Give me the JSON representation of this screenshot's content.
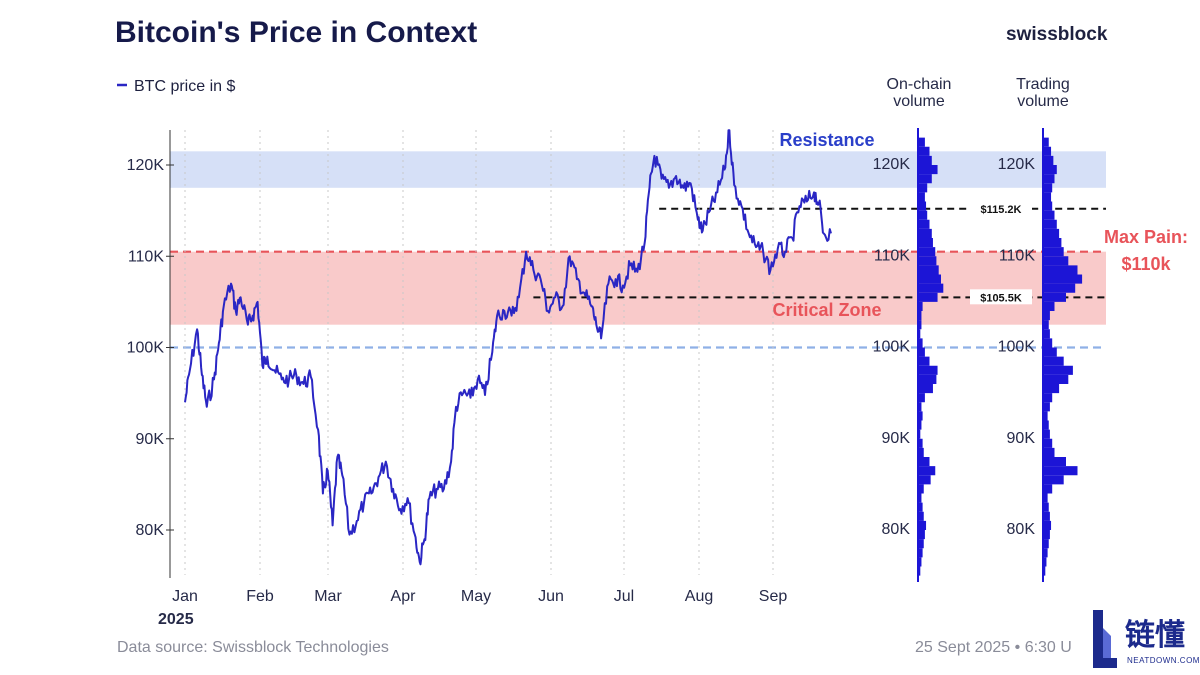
{
  "header": {
    "title": "Bitcoin's Price in Context",
    "brand": "swissblock"
  },
  "legend": {
    "series_label": "BTC price in $",
    "color": "#2a26c4"
  },
  "footer": {
    "source": "Data source: Swissblock Technologies",
    "timestamp": "25 Sept 2025 • 6:30 U"
  },
  "watermark": {
    "text_cn": "链懂",
    "text_en": "NEATDOWN.COM"
  },
  "colors": {
    "line": "#2a26c4",
    "resistance_band": "#d6e0f7",
    "critical_band": "#f9caca",
    "max_pain_line": "#e8545a",
    "support_line": "#8fb0e6",
    "volume_bars": "#1c15d6"
  },
  "chart_data": {
    "type": "line",
    "title": "Bitcoin's Price in Context",
    "series_name": "BTC price in $",
    "ylim": [
      75000,
      124000
    ],
    "y_ticks": [
      {
        "value": 80000,
        "label": "80K"
      },
      {
        "value": 90000,
        "label": "90K"
      },
      {
        "value": 100000,
        "label": "100K"
      },
      {
        "value": 110000,
        "label": "110K"
      },
      {
        "value": 120000,
        "label": "120K"
      }
    ],
    "x_ticks": [
      "Jan",
      "Feb",
      "Mar",
      "Apr",
      "May",
      "Jun",
      "Jul",
      "Aug",
      "Sep"
    ],
    "x_year_label": "2025",
    "x_start": "2025-01-01",
    "x_end": "2025-09-26",
    "series": [
      {
        "x": [
          "2025-01-01",
          "2025-01-03",
          "2025-01-06",
          "2025-01-08",
          "2025-01-10",
          "2025-01-13",
          "2025-01-15",
          "2025-01-17",
          "2025-01-20",
          "2025-01-22",
          "2025-01-24",
          "2025-01-27",
          "2025-01-29",
          "2025-01-31",
          "2025-02-02",
          "2025-02-04",
          "2025-02-07",
          "2025-02-10",
          "2025-02-13",
          "2025-02-16",
          "2025-02-19",
          "2025-02-22",
          "2025-02-25",
          "2025-02-27",
          "2025-03-01",
          "2025-03-03",
          "2025-03-05",
          "2025-03-07",
          "2025-03-10",
          "2025-03-13",
          "2025-03-16",
          "2025-03-19",
          "2025-03-22",
          "2025-03-25",
          "2025-03-28",
          "2025-03-31",
          "2025-04-03",
          "2025-04-06",
          "2025-04-08",
          "2025-04-10",
          "2025-04-12",
          "2025-04-15",
          "2025-04-18",
          "2025-04-21",
          "2025-04-23",
          "2025-04-26",
          "2025-04-29",
          "2025-05-02",
          "2025-05-05",
          "2025-05-08",
          "2025-05-10",
          "2025-05-13",
          "2025-05-16",
          "2025-05-19",
          "2025-05-22",
          "2025-05-25",
          "2025-05-28",
          "2025-05-31",
          "2025-06-03",
          "2025-06-06",
          "2025-06-09",
          "2025-06-12",
          "2025-06-15",
          "2025-06-18",
          "2025-06-20",
          "2025-06-22",
          "2025-06-25",
          "2025-06-28",
          "2025-07-01",
          "2025-07-04",
          "2025-07-07",
          "2025-07-10",
          "2025-07-12",
          "2025-07-14",
          "2025-07-17",
          "2025-07-20",
          "2025-07-23",
          "2025-07-26",
          "2025-07-29",
          "2025-08-01",
          "2025-08-03",
          "2025-08-06",
          "2025-08-09",
          "2025-08-12",
          "2025-08-14",
          "2025-08-16",
          "2025-08-19",
          "2025-08-22",
          "2025-08-25",
          "2025-08-28",
          "2025-08-31",
          "2025-09-03",
          "2025-09-06",
          "2025-09-09",
          "2025-09-12",
          "2025-09-15",
          "2025-09-18",
          "2025-09-20",
          "2025-09-22",
          "2025-09-25"
        ],
        "y": [
          94000,
          97500,
          102000,
          97000,
          93500,
          96500,
          100500,
          104500,
          107000,
          104000,
          105500,
          102500,
          103500,
          105000,
          98000,
          99000,
          97500,
          96500,
          96500,
          97000,
          96000,
          96800,
          91000,
          84000,
          86500,
          80500,
          88000,
          86000,
          79500,
          81000,
          83000,
          84000,
          85800,
          87500,
          84500,
          82300,
          83500,
          79500,
          76500,
          79000,
          83500,
          84500,
          84500,
          87500,
          93500,
          95000,
          94500,
          96500,
          94800,
          99500,
          103500,
          104000,
          103500,
          105500,
          110500,
          108500,
          107500,
          104000,
          105500,
          104500,
          110000,
          107500,
          106000,
          104500,
          102500,
          101000,
          107000,
          107500,
          106800,
          109000,
          108300,
          111500,
          117500,
          121000,
          118500,
          117500,
          118800,
          117500,
          118000,
          114000,
          112800,
          115000,
          117000,
          119500,
          123800,
          117800,
          115500,
          112500,
          111000,
          110500,
          108500,
          110800,
          110500,
          112000,
          115500,
          116000,
          117000,
          115800,
          112500,
          112500
        ]
      }
    ],
    "bands": [
      {
        "name": "Resistance",
        "from": 117500,
        "to": 121500
      },
      {
        "name": "Critical Zone",
        "from": 102500,
        "to": 110500
      }
    ],
    "levels": [
      {
        "name": "Max Pain",
        "value": 110500,
        "label": "Max Pain:",
        "label2": "$110k"
      },
      {
        "name": "support",
        "value": 100000
      },
      {
        "name": "upper",
        "value": 115200,
        "label": "$115.2K",
        "from_x": "2025-07-16"
      },
      {
        "name": "lower",
        "value": 105500,
        "label": "$105.5K",
        "from_x": "2025-05-25"
      }
    ],
    "volume_profiles": [
      {
        "label": "On-chain volume",
        "label_line1": "On-chain",
        "label_line2": "volume",
        "y_ticks": [
          "80K",
          "90K",
          "100K",
          "110K",
          "120K"
        ],
        "bins_from": 75000,
        "bin_size": 1000,
        "values": [
          2,
          3,
          4,
          5,
          6,
          7,
          5,
          4,
          3,
          5,
          11,
          15,
          10,
          5,
          4,
          2,
          3,
          4,
          3,
          6,
          13,
          16,
          17,
          10,
          6,
          4,
          2,
          3,
          3,
          4,
          17,
          22,
          20,
          18,
          16,
          15,
          13,
          12,
          10,
          8,
          7,
          6,
          8,
          12,
          17,
          12,
          10,
          6,
          4,
          3
        ]
      },
      {
        "label": "Trading volume",
        "label_line1": "Trading",
        "label_line2": "volume",
        "y_ticks": [
          "80K",
          "90K",
          "100K",
          "110K",
          "120K"
        ],
        "bins_from": 75000,
        "bin_size": 1000,
        "values": [
          2,
          3,
          4,
          5,
          6,
          7,
          6,
          5,
          4,
          8,
          18,
          30,
          20,
          10,
          8,
          6,
          5,
          4,
          6,
          8,
          14,
          22,
          26,
          18,
          12,
          8,
          6,
          5,
          6,
          10,
          20,
          28,
          34,
          30,
          22,
          18,
          16,
          14,
          12,
          10,
          8,
          7,
          8,
          10,
          12,
          9,
          7,
          5,
          4,
          3
        ]
      }
    ],
    "annotations": [
      {
        "text": "Resistance"
      },
      {
        "text": "Critical Zone"
      }
    ]
  }
}
